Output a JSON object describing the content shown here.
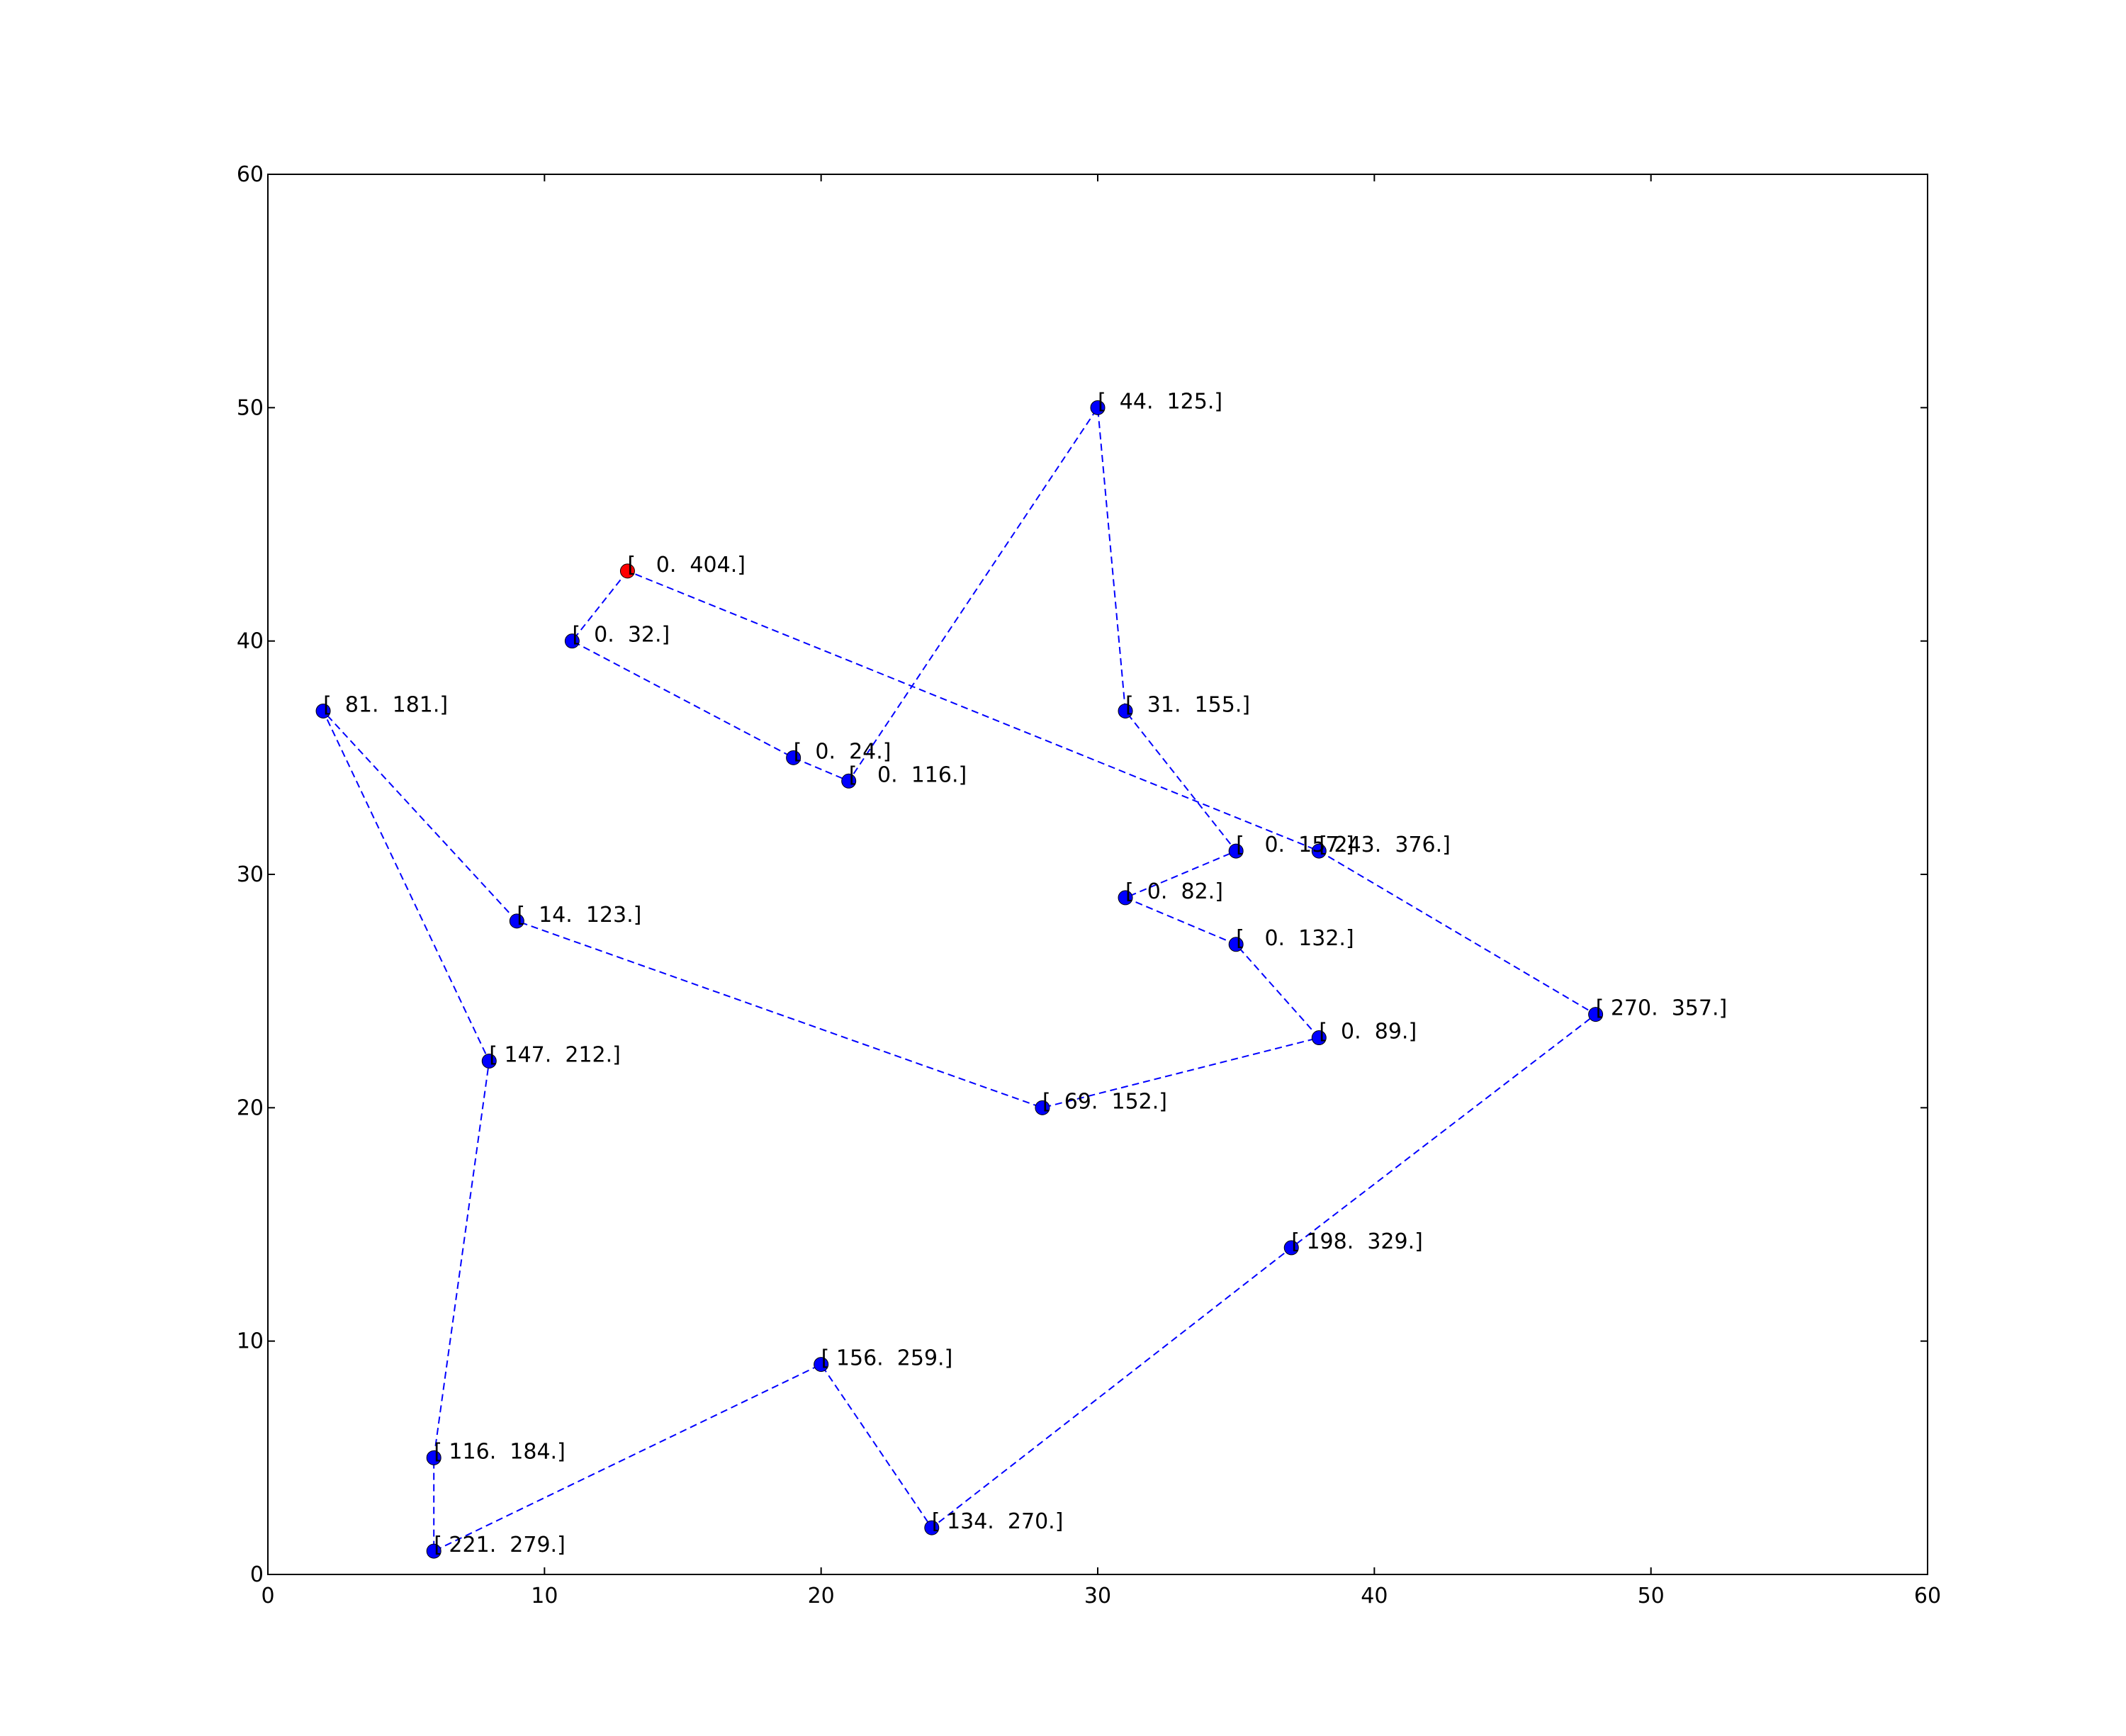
{
  "chart_data": {
    "type": "scatter",
    "title": "",
    "xlabel": "",
    "ylabel": "",
    "xlim": [
      0,
      60
    ],
    "ylim": [
      0,
      60
    ],
    "x_ticks": [
      0,
      10,
      20,
      30,
      40,
      50,
      60
    ],
    "y_ticks": [
      0,
      10,
      20,
      30,
      40,
      50,
      60
    ],
    "grid": false,
    "colors": {
      "point": "#0000ff",
      "start_point": "#ff0000",
      "route_line": "#0000ff"
    },
    "points": [
      {
        "x": 13,
        "y": 43,
        "label": "[   0.  404.]",
        "start": true
      },
      {
        "x": 11,
        "y": 40,
        "label": "[  0.  32.]"
      },
      {
        "x": 19,
        "y": 35,
        "label": "[  0.  24.]"
      },
      {
        "x": 21,
        "y": 34,
        "label": "[   0.  116.]"
      },
      {
        "x": 30,
        "y": 50,
        "label": "[  44.  125.]"
      },
      {
        "x": 31,
        "y": 37,
        "label": "[  31.  155.]"
      },
      {
        "x": 35,
        "y": 31,
        "label": "[   0.  157.]"
      },
      {
        "x": 31,
        "y": 29,
        "label": "[  0.  82.]"
      },
      {
        "x": 35,
        "y": 27,
        "label": "[   0.  132.]"
      },
      {
        "x": 38,
        "y": 23,
        "label": "[  0.  89.]"
      },
      {
        "x": 28,
        "y": 20,
        "label": "[  69.  152.]"
      },
      {
        "x": 9,
        "y": 28,
        "label": "[  14.  123.]"
      },
      {
        "x": 2,
        "y": 37,
        "label": "[  81.  181.]"
      },
      {
        "x": 8,
        "y": 22,
        "label": "[ 147.  212.]"
      },
      {
        "x": 6,
        "y": 5,
        "label": "[ 116.  184.]"
      },
      {
        "x": 6,
        "y": 1,
        "label": "[ 221.  279.]"
      },
      {
        "x": 20,
        "y": 9,
        "label": "[ 156.  259.]"
      },
      {
        "x": 24,
        "y": 2,
        "label": "[ 134.  270.]"
      },
      {
        "x": 37,
        "y": 14,
        "label": "[ 198.  329.]"
      },
      {
        "x": 48,
        "y": 24,
        "label": "[ 270.  357.]"
      },
      {
        "x": 38,
        "y": 31,
        "label": "[ 243.  376.]"
      }
    ],
    "route_order": [
      0,
      1,
      2,
      3,
      4,
      5,
      6,
      7,
      8,
      9,
      10,
      11,
      12,
      13,
      14,
      15,
      16,
      17,
      18,
      19,
      20,
      0
    ]
  }
}
